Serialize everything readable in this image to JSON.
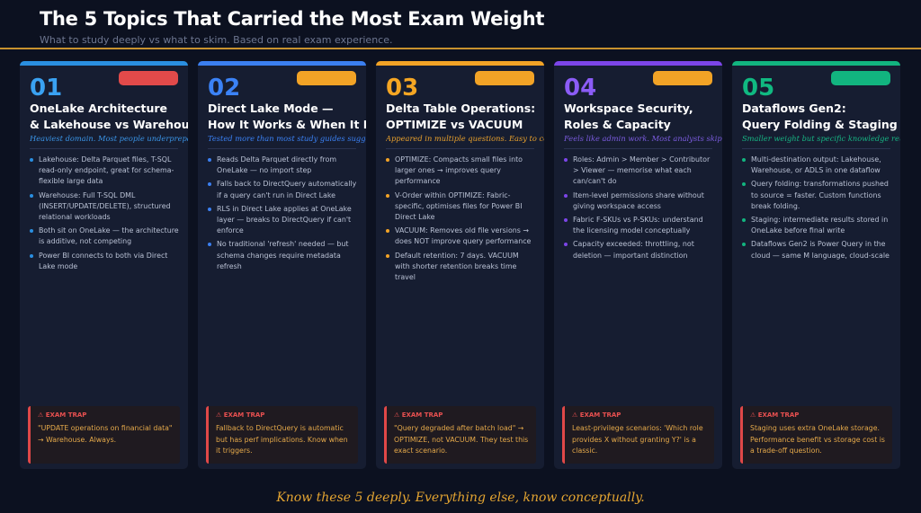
{
  "header": {
    "title": "The 5 Topics That Carried the Most Exam Weight",
    "subtitle": "What to study deeply vs what to skim. Based on real exam experience."
  },
  "cards": [
    {
      "number": "01",
      "title_lines": [
        "OneLake Architecture",
        "& Lakehouse vs Warehouse"
      ],
      "subtitle": "Heaviest domain. Most people underprepare here.",
      "bullets": [
        "Lakehouse: Delta Parquet files, T-SQL read-only endpoint, great for schema-flexible large data",
        "Warehouse: Full T-SQL DML (INSERT/UPDATE/DELETE), structured relational workloads",
        "Both sit on OneLake — the architecture is additive, not competing",
        "Power BI connects to both via Direct Lake mode"
      ],
      "trap": {
        "label": "⚠ EXAM TRAP",
        "text": "\"UPDATE operations on financial data\" → Warehouse. Always."
      }
    },
    {
      "number": "02",
      "title_lines": [
        "Direct Lake Mode —",
        "How It Works & When It Breaks"
      ],
      "subtitle": "Tested more than most study guides suggest.",
      "bullets": [
        "Reads Delta Parquet directly from OneLake — no import step",
        "Falls back to DirectQuery automatically if a query can't run in Direct Lake",
        "RLS in Direct Lake applies at OneLake layer — breaks to DirectQuery if can't enforce",
        "No traditional 'refresh' needed — but schema changes require metadata refresh"
      ],
      "trap": {
        "label": "⚠ EXAM TRAP",
        "text": "Fallback to DirectQuery is automatic but has perf implications. Know when it triggers."
      }
    },
    {
      "number": "03",
      "title_lines": [
        "Delta Table Operations:",
        "OPTIMIZE vs VACUUM"
      ],
      "subtitle": "Appeared in multiple questions. Easy to confuse.",
      "bullets": [
        "OPTIMIZE: Compacts small files into larger ones → improves query performance",
        "V-Order within OPTIMIZE: Fabric-specific, optimises files for Power BI Direct Lake",
        "VACUUM: Removes old file versions → does NOT improve query performance",
        "Default retention: 7 days. VACUUM with shorter retention breaks time travel"
      ],
      "trap": {
        "label": "⚠ EXAM TRAP",
        "text": "\"Query degraded after batch load\" → OPTIMIZE, not VACUUM. They test this exact scenario."
      }
    },
    {
      "number": "04",
      "title_lines": [
        "Workspace Security,",
        "Roles & Capacity"
      ],
      "subtitle": "Feels like admin work. Most analysts skip it. That's a mistake.",
      "bullets": [
        "Roles: Admin > Member > Contributor > Viewer — memorise what each can/can't do",
        "Item-level permissions share without giving workspace access",
        "Fabric F-SKUs vs P-SKUs: understand the licensing model conceptually",
        "Capacity exceeded: throttling, not deletion — important distinction"
      ],
      "trap": {
        "label": "⚠ EXAM TRAP",
        "text": "Least-privilege scenarios: 'Which role provides X without granting Y?' is a classic."
      }
    },
    {
      "number": "05",
      "title_lines": [
        "Dataflows Gen2:",
        "Query Folding & Staging"
      ],
      "subtitle": "Smaller weight but specific knowledge required.",
      "bullets": [
        "Multi-destination output: Lakehouse, Warehouse, or ADLS in one dataflow",
        "Query folding: transformations pushed to source = faster. Custom functions break folding.",
        "Staging: intermediate results stored in OneLake before final write",
        "Dataflows Gen2 is Power Query in the cloud — same M language, cloud-scale"
      ],
      "trap": {
        "label": "⚠ EXAM TRAP",
        "text": "Staging uses extra OneLake storage. Performance benefit vs storage cost is a trade-off question."
      }
    }
  ],
  "footer": "Know these 5 deeply. Everything else, know conceptually."
}
